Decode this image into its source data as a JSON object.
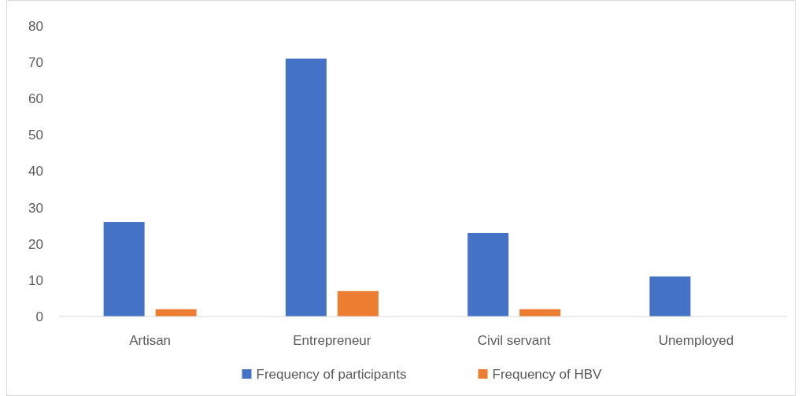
{
  "chart_data": {
    "type": "bar",
    "categories": [
      "Artisan",
      "Entrepreneur",
      "Civil servant",
      "Unemployed"
    ],
    "series": [
      {
        "name": "Frequency of participants",
        "color": "#4472c4",
        "values": [
          26,
          71,
          23,
          11
        ]
      },
      {
        "name": "Frequency of HBV",
        "color": "#ed7d31",
        "values": [
          2,
          7,
          2,
          0
        ]
      }
    ],
    "ylim": [
      0,
      80
    ],
    "yticks": [
      0,
      10,
      20,
      30,
      40,
      50,
      60,
      70,
      80
    ],
    "grid": false,
    "legend": "bottom"
  }
}
